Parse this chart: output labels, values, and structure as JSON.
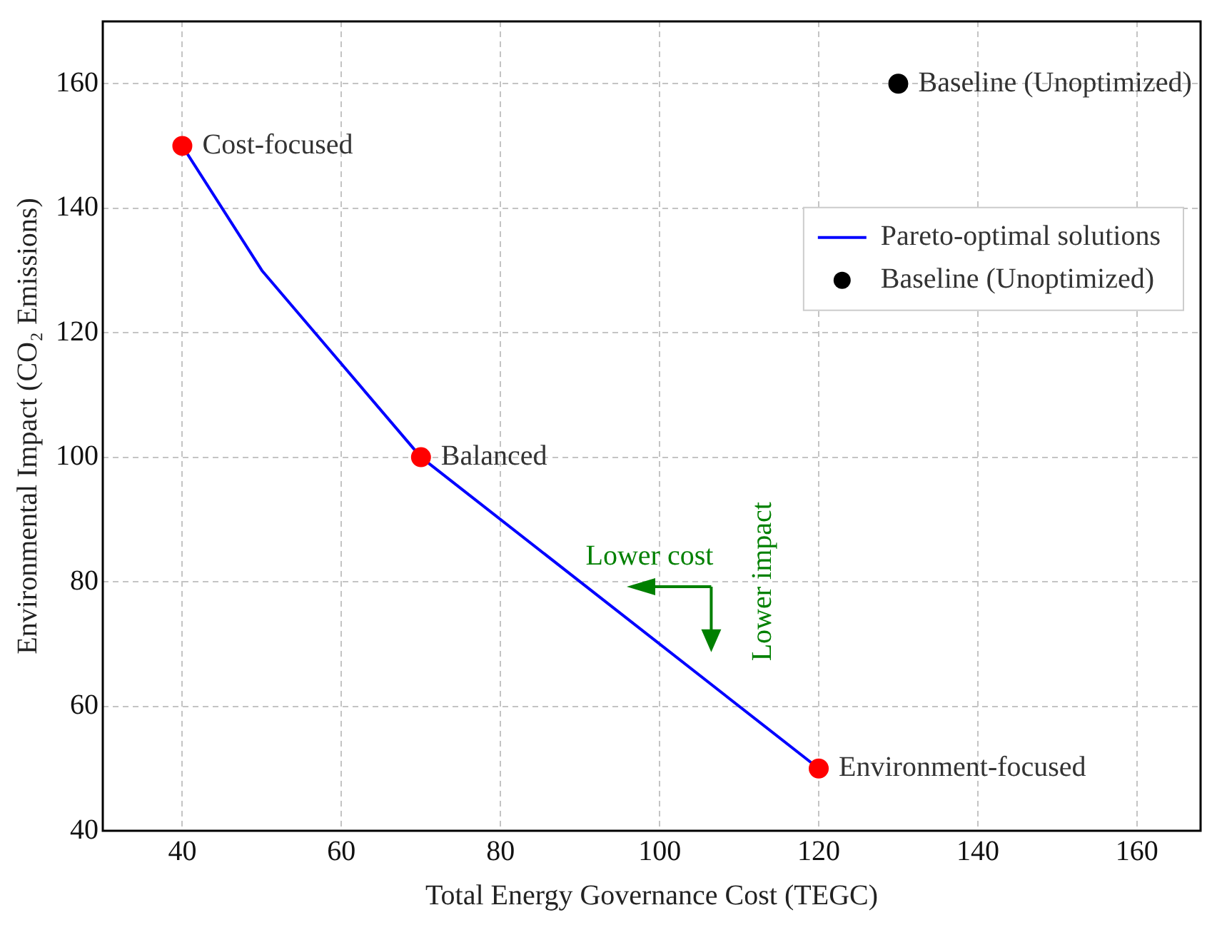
{
  "chart_data": {
    "type": "scatter",
    "xlabel": "Total Energy Governance Cost (TEGC)",
    "ylabel": "Environmental Impact (CO₂ Emissions)",
    "series": [
      {
        "type": "line",
        "name": "Pareto-optimal solutions",
        "color": "#0000ff",
        "marker": "none",
        "x": [
          40,
          50,
          70,
          120
        ],
        "values": [
          150,
          130,
          100,
          50
        ]
      },
      {
        "type": "scatter",
        "color": "#ff0000",
        "x": [
          40,
          70,
          120
        ],
        "values": [
          150,
          100,
          50
        ]
      },
      {
        "type": "scatter",
        "name": "Baseline (Unoptimized)",
        "color": "#000000",
        "x": [
          130
        ],
        "values": [
          160
        ]
      }
    ],
    "xlim": [
      30,
      168
    ],
    "xticks": [
      40,
      60,
      80,
      100,
      120,
      140,
      160
    ],
    "ylim": [
      40,
      170
    ],
    "yticks": [
      40,
      60,
      80,
      100,
      120,
      140,
      160
    ],
    "grid": true,
    "legend": "right",
    "marker": "circle",
    "annotations": [
      {
        "text": "Cost-focused",
        "x": 40,
        "y": 150
      },
      {
        "text": "Balanced",
        "x": 70,
        "y": 100
      },
      {
        "text": "Environment-focused",
        "x": 120,
        "y": 50
      },
      {
        "text": "Baseline (Unoptimized)",
        "x": 130,
        "y": 160
      },
      "Lower cost",
      "Lower impact"
    ]
  }
}
